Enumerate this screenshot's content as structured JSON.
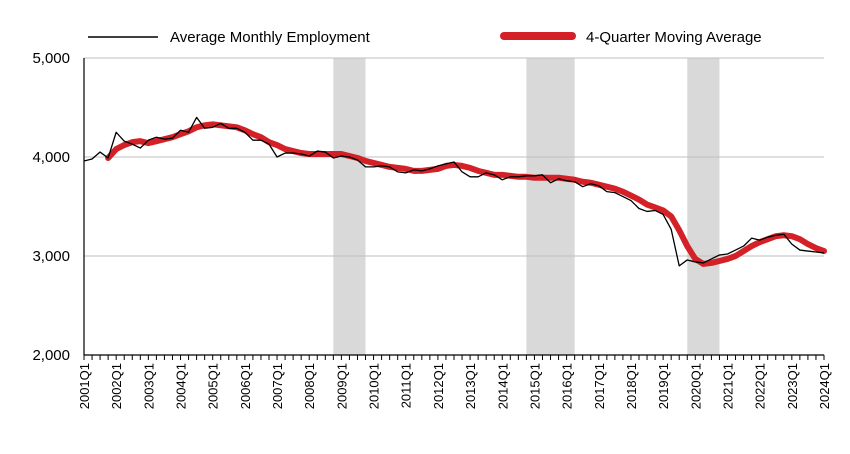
{
  "chart_data": {
    "type": "line",
    "legend_position": "top",
    "grid": "horizontal",
    "ylim": [
      2000,
      5000
    ],
    "y_ticks": [
      2000,
      3000,
      4000,
      5000
    ],
    "y_tick_labels": [
      "2,000",
      "3,000",
      "4,000",
      "5,000"
    ],
    "x_tick_labels": [
      "2001Q1",
      "2002Q1",
      "2003Q1",
      "2004Q1",
      "2005Q1",
      "2006Q1",
      "2007Q1",
      "2008Q1",
      "2009Q1",
      "2010Q1",
      "2011Q1",
      "2012Q1",
      "2013Q1",
      "2014Q1",
      "2015Q1",
      "2016Q1",
      "2017Q1",
      "2018Q1",
      "2019Q1",
      "2020Q1",
      "2021Q1",
      "2022Q1",
      "2023Q1",
      "2024Q1"
    ],
    "shaded_periods": [
      {
        "start": "2008Q4",
        "end": "2009Q4"
      },
      {
        "start": "2014Q4",
        "end": "2016Q2"
      },
      {
        "start": "2019Q4",
        "end": "2020Q4"
      }
    ],
    "colors": {
      "monthly": "#000000",
      "moving_average": "#d42027",
      "shade": "#d9d9d9",
      "grid": "#bfbfbf"
    },
    "series": [
      {
        "name": "Average Monthly Employment",
        "values": [
          3960,
          3980,
          4050,
          3990,
          4250,
          4160,
          4130,
          4090,
          4170,
          4200,
          4180,
          4190,
          4270,
          4250,
          4400,
          4290,
          4300,
          4340,
          4290,
          4290,
          4250,
          4170,
          4170,
          4130,
          4000,
          4040,
          4040,
          4030,
          4010,
          4060,
          4050,
          3990,
          4010,
          4000,
          3970,
          3900,
          3900,
          3910,
          3900,
          3850,
          3840,
          3870,
          3860,
          3880,
          3910,
          3930,
          3950,
          3850,
          3800,
          3800,
          3840,
          3820,
          3770,
          3800,
          3800,
          3810,
          3810,
          3820,
          3740,
          3780,
          3760,
          3750,
          3700,
          3730,
          3710,
          3650,
          3640,
          3600,
          3560,
          3480,
          3450,
          3460,
          3420,
          3270,
          2900,
          2960,
          2940,
          2930,
          2970,
          3010,
          3020,
          3060,
          3100,
          3180,
          3160,
          3190,
          3210,
          3220,
          3120,
          3060,
          3050,
          3040,
          3030
        ]
      },
      {
        "name": "4-Quarter Moving Average",
        "values": [
          null,
          null,
          null,
          3990,
          4080,
          4120,
          4150,
          4160,
          4140,
          4160,
          4180,
          4200,
          4230,
          4260,
          4300,
          4320,
          4330,
          4320,
          4310,
          4300,
          4270,
          4230,
          4200,
          4150,
          4120,
          4080,
          4060,
          4040,
          4030,
          4030,
          4030,
          4030,
          4030,
          4010,
          3990,
          3960,
          3940,
          3920,
          3900,
          3890,
          3880,
          3860,
          3860,
          3870,
          3880,
          3910,
          3920,
          3910,
          3890,
          3860,
          3840,
          3820,
          3820,
          3810,
          3800,
          3800,
          3790,
          3790,
          3790,
          3790,
          3780,
          3770,
          3750,
          3740,
          3720,
          3700,
          3680,
          3650,
          3610,
          3570,
          3520,
          3490,
          3460,
          3400,
          3260,
          3100,
          2970,
          2920,
          2930,
          2950,
          2970,
          3000,
          3050,
          3100,
          3140,
          3170,
          3200,
          3210,
          3200,
          3170,
          3120,
          3080,
          3050
        ]
      }
    ]
  },
  "legend": {
    "monthly_label": "Average Monthly Employment",
    "ma_label": "4-Quarter Moving Average"
  }
}
